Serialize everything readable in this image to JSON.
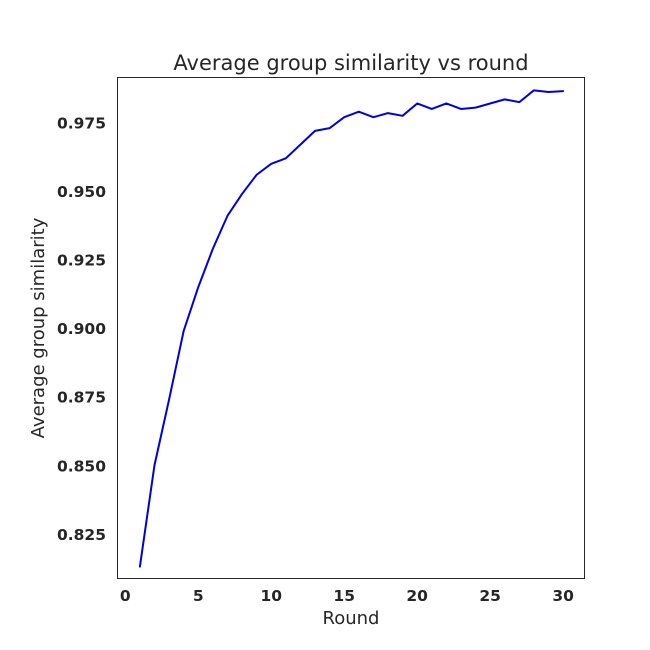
{
  "chart_data": {
    "type": "line",
    "title": "Average group similarity vs round",
    "xlabel": "Round",
    "ylabel": "Average group similarity",
    "xlim": [
      -0.5,
      31.5
    ],
    "ylim": [
      0.8085,
      0.9913
    ],
    "xticks": [
      0,
      5,
      10,
      15,
      20,
      25,
      30
    ],
    "xtick_labels": [
      "0",
      "5",
      "10",
      "15",
      "20",
      "25",
      "30"
    ],
    "yticks": [
      0.825,
      0.85,
      0.875,
      0.9,
      0.925,
      0.95,
      0.975
    ],
    "ytick_labels": [
      "0.825",
      "0.850",
      "0.875",
      "0.900",
      "0.925",
      "0.950",
      "0.975"
    ],
    "grid": false,
    "legend": false,
    "series": [
      {
        "color": "#0000dd",
        "x": [
          1,
          2,
          3,
          4,
          5,
          6,
          7,
          8,
          9,
          10,
          11,
          12,
          13,
          14,
          15,
          16,
          17,
          18,
          19,
          20,
          21,
          22,
          23,
          24,
          25,
          26,
          27,
          28,
          29,
          30
        ],
        "values": [
          0.813,
          0.85,
          0.874,
          0.899,
          0.915,
          0.929,
          0.941,
          0.949,
          0.956,
          0.96,
          0.962,
          0.967,
          0.972,
          0.973,
          0.977,
          0.979,
          0.977,
          0.9785,
          0.9775,
          0.982,
          0.98,
          0.982,
          0.98,
          0.9805,
          0.982,
          0.9835,
          0.9825,
          0.9868,
          0.9862,
          0.9865
        ]
      }
    ]
  }
}
